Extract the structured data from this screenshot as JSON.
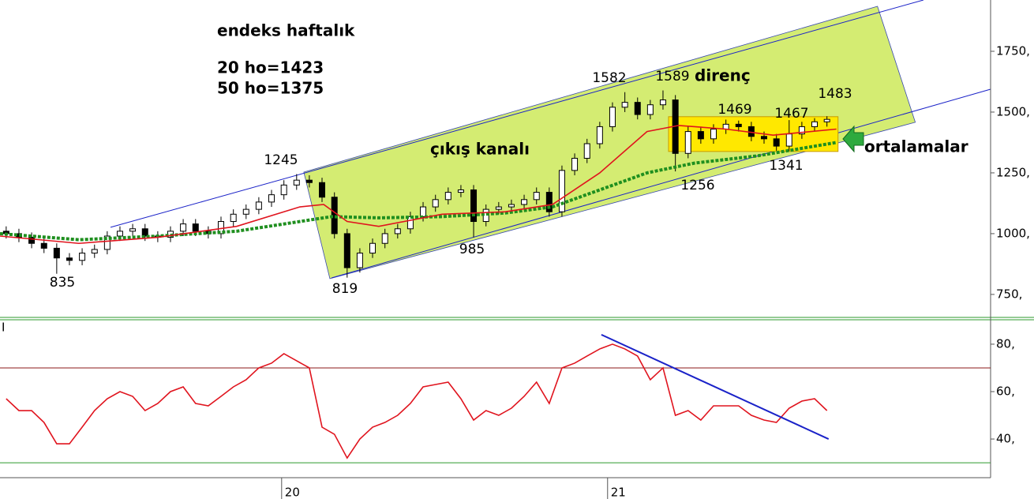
{
  "chart_data": {
    "type": "candlestick",
    "annotations": {
      "title": "endeks haftalık",
      "ma20": "20 ho=1423",
      "ma50": "50 ho=1375",
      "channel": "çıkış kanalı",
      "resistance": "direnç",
      "averages": "ortalamalar"
    },
    "price_labels": [
      835,
      1245,
      819,
      985,
      1582,
      1589,
      1256,
      1469,
      1341,
      1467,
      1483
    ],
    "xlim": [
      19.136,
      22.175
    ],
    "xticks": [
      20,
      21
    ],
    "ylim": [
      662,
      1961
    ],
    "yticks": [
      {
        "value": 750,
        "label": "750,"
      },
      {
        "value": 1000,
        "label": "1000,"
      },
      {
        "value": 1250,
        "label": "1250,"
      },
      {
        "value": 1500,
        "label": "1500,"
      },
      {
        "value": 1750,
        "label": "1750,"
      }
    ],
    "x": [
      19.155,
      19.194,
      19.233,
      19.271,
      19.31,
      19.349,
      19.388,
      19.426,
      19.465,
      19.504,
      19.543,
      19.581,
      19.62,
      19.659,
      19.698,
      19.736,
      19.775,
      19.814,
      19.852,
      19.891,
      19.93,
      19.969,
      20.007,
      20.046,
      20.085,
      20.124,
      20.162,
      20.201,
      20.24,
      20.279,
      20.317,
      20.356,
      20.395,
      20.434,
      20.472,
      20.511,
      20.55,
      20.589,
      20.627,
      20.666,
      20.705,
      20.744,
      20.782,
      20.821,
      20.86,
      20.899,
      20.937,
      20.976,
      21.015,
      21.053,
      21.092,
      21.131,
      21.17,
      21.208,
      21.247,
      21.286,
      21.325,
      21.363,
      21.402,
      21.441,
      21.48,
      21.518,
      21.557,
      21.596,
      21.635,
      21.673
    ],
    "candles": {
      "open": [
        1010,
        1000,
        985,
        960,
        940,
        900,
        890,
        920,
        935,
        990,
        1010,
        1020,
        990,
        985,
        1010,
        1040,
        1010,
        1000,
        1050,
        1080,
        1100,
        1130,
        1160,
        1200,
        1220,
        1210,
        1150,
        1000,
        860,
        920,
        960,
        1000,
        1020,
        1070,
        1110,
        1140,
        1170,
        1180,
        1050,
        1100,
        1110,
        1120,
        1140,
        1170,
        1090,
        1260,
        1310,
        1370,
        1440,
        1520,
        1540,
        1490,
        1530,
        1550,
        1330,
        1420,
        1390,
        1430,
        1450,
        1440,
        1400,
        1390,
        1360,
        1410,
        1440,
        1460
      ],
      "high": [
        1030,
        1020,
        1005,
        980,
        960,
        920,
        940,
        955,
        1010,
        1030,
        1040,
        1040,
        1010,
        1030,
        1060,
        1060,
        1030,
        1070,
        1100,
        1120,
        1150,
        1180,
        1220,
        1245,
        1240,
        1230,
        1170,
        1020,
        940,
        980,
        1020,
        1040,
        1090,
        1130,
        1160,
        1190,
        1200,
        1200,
        1120,
        1130,
        1140,
        1160,
        1190,
        1190,
        1280,
        1330,
        1390,
        1460,
        1540,
        1582,
        1560,
        1550,
        1589,
        1570,
        1440,
        1440,
        1450,
        1469,
        1465,
        1460,
        1420,
        1410,
        1467,
        1460,
        1475,
        1483
      ],
      "low": [
        980,
        965,
        940,
        920,
        835,
        870,
        870,
        900,
        915,
        970,
        990,
        970,
        965,
        965,
        990,
        990,
        980,
        980,
        1030,
        1060,
        1080,
        1110,
        1140,
        1180,
        1190,
        1130,
        980,
        819,
        840,
        900,
        940,
        980,
        1000,
        1050,
        1090,
        1120,
        1150,
        985,
        1030,
        1080,
        1090,
        1100,
        1120,
        1070,
        1070,
        1240,
        1290,
        1350,
        1420,
        1500,
        1470,
        1470,
        1510,
        1256,
        1310,
        1370,
        1370,
        1410,
        1420,
        1380,
        1370,
        1341,
        1340,
        1390,
        1420,
        1440
      ],
      "close": [
        1000,
        985,
        960,
        940,
        900,
        890,
        920,
        935,
        990,
        1010,
        1020,
        990,
        985,
        1010,
        1040,
        1010,
        1000,
        1050,
        1080,
        1100,
        1130,
        1160,
        1200,
        1220,
        1210,
        1150,
        1000,
        860,
        920,
        960,
        1000,
        1020,
        1070,
        1110,
        1140,
        1170,
        1180,
        1050,
        1100,
        1110,
        1120,
        1140,
        1170,
        1090,
        1260,
        1310,
        1370,
        1440,
        1520,
        1540,
        1490,
        1530,
        1550,
        1330,
        1420,
        1390,
        1430,
        1450,
        1440,
        1400,
        1390,
        1360,
        1410,
        1440,
        1460,
        1470
      ]
    },
    "ma20": {
      "color": "#e0141e",
      "x": [
        19.136,
        19.378,
        19.62,
        19.862,
        20.056,
        20.129,
        20.201,
        20.298,
        20.492,
        20.686,
        20.831,
        20.976,
        21.121,
        21.218,
        21.363,
        21.508,
        21.702
      ],
      "values": [
        990,
        960,
        985,
        1030,
        1110,
        1120,
        1050,
        1030,
        1080,
        1090,
        1120,
        1250,
        1420,
        1445,
        1430,
        1405,
        1430
      ]
    },
    "ma50": {
      "color": "#1f8f1f",
      "x": [
        19.136,
        19.378,
        19.62,
        19.862,
        20.008,
        20.153,
        20.298,
        20.492,
        20.686,
        20.831,
        20.976,
        21.121,
        21.266,
        21.46,
        21.702
      ],
      "values": [
        1000,
        975,
        990,
        1010,
        1040,
        1070,
        1065,
        1070,
        1085,
        1110,
        1180,
        1250,
        1290,
        1320,
        1375
      ]
    },
    "channel": {
      "upper": {
        "x": [
          19.475,
          21.969
        ],
        "values": [
          1026,
          1961
        ]
      },
      "lower": {
        "x": [
          20.153,
          22.175
        ],
        "values": [
          818,
          1594
        ]
      },
      "fill": {
        "x": [
          20.068,
          21.828,
          21.944,
          20.148
        ],
        "values": [
          1253,
          1935,
          1458,
          815
        ]
      }
    },
    "box": {
      "x": [
        21.187,
        21.707
      ],
      "values": [
        1338,
        1481
      ]
    },
    "rsi": {
      "label": "I",
      "color": "#e0141e",
      "ylim": [
        23.7,
        89.3
      ],
      "yticks": [
        {
          "value": 40,
          "label": "40,"
        },
        {
          "value": 60,
          "label": "60,"
        },
        {
          "value": 80,
          "label": "80,"
        }
      ],
      "levels": [
        70,
        30
      ],
      "level_colors": [
        "#8b1a1a",
        "#2e9a2e"
      ],
      "values": [
        57,
        52,
        52,
        47,
        38,
        38,
        45,
        52,
        57,
        60,
        58,
        52,
        55,
        60,
        62,
        55,
        54,
        58,
        62,
        65,
        70,
        72,
        76,
        73,
        70,
        45,
        42,
        32,
        40,
        45,
        47,
        50,
        55,
        62,
        63,
        64,
        57,
        48,
        52,
        50,
        53,
        58,
        64,
        55,
        70,
        72,
        75,
        78,
        80,
        78,
        75,
        65,
        70,
        50,
        52,
        48,
        54,
        54,
        54,
        50,
        48,
        47,
        53,
        56,
        57,
        52
      ],
      "trend": {
        "x": [
          20.981,
          21.678
        ],
        "values": [
          84,
          40
        ]
      }
    }
  }
}
